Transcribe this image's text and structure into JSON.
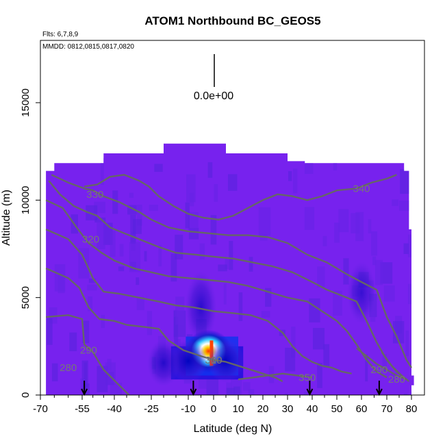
{
  "chart_data": {
    "type": "heatmap",
    "title": "ATOM1 Northbound BC_GEOS5",
    "subtitle_flights": "Flts: 6,7,8,9",
    "subtitle_dates": "MMDD: 0812,0815,0817,0820",
    "xlabel": "Latitude (deg N)",
    "ylabel": "Altitude (m)",
    "xlim": [
      -70,
      80
    ],
    "ylim": [
      0,
      18000
    ],
    "x_ticks": [
      -70,
      -55,
      -40,
      -25,
      -10,
      0,
      10,
      20,
      30,
      40,
      50,
      60,
      70,
      80
    ],
    "x_tick_labels": [
      "-70",
      "-55",
      "-40",
      "-25",
      "-10",
      "0",
      "10",
      "20",
      "30",
      "40",
      "50",
      "60",
      "70",
      "80"
    ],
    "x_minor_ticks": [
      -65,
      -60,
      -50,
      -45,
      -35,
      -30,
      -20,
      -15,
      -5,
      5,
      15,
      25,
      35,
      45,
      55,
      65,
      75
    ],
    "y_ticks": [
      0,
      5000,
      10000,
      15000
    ],
    "y_tick_labels": [
      "0",
      "5000",
      "10000",
      "15000"
    ],
    "scale_label": "0.0e+00",
    "grid": false,
    "colors": {
      "background_field": "#7722ee",
      "field_dark": "#5522dd",
      "field_blue": "#2211dd",
      "contour": "#666666",
      "hot_core": "#ff4400"
    },
    "domain_outline": [
      [
        -68,
        0
      ],
      [
        -68,
        11500
      ],
      [
        -65,
        11500
      ],
      [
        -65,
        11900
      ],
      [
        -45,
        11900
      ],
      [
        -45,
        12400
      ],
      [
        -20,
        12400
      ],
      [
        -20,
        12900
      ],
      [
        5,
        12900
      ],
      [
        5,
        12400
      ],
      [
        30,
        12400
      ],
      [
        30,
        12000
      ],
      [
        37,
        12000
      ],
      [
        37,
        11900
      ],
      [
        77,
        11900
      ],
      [
        77,
        11500
      ],
      [
        79,
        11500
      ],
      [
        79,
        8500
      ],
      [
        80,
        8500
      ],
      [
        80,
        1000
      ],
      [
        81,
        1000
      ],
      [
        81,
        500
      ],
      [
        80,
        500
      ],
      [
        80,
        0
      ]
    ],
    "hotspots": [
      {
        "lat": -2,
        "alt_min": 1500,
        "alt_max": 3000,
        "intensity": 1.0
      },
      {
        "lat": -10,
        "alt_min": 1000,
        "alt_max": 2500,
        "intensity": 0.5
      },
      {
        "lat": 5,
        "alt_min": 1000,
        "alt_max": 2500,
        "intensity": 0.45
      },
      {
        "lat": -20,
        "alt_min": 800,
        "alt_max": 2500,
        "intensity": 0.3
      },
      {
        "lat": -5,
        "alt_min": 3000,
        "alt_max": 6000,
        "intensity": 0.25
      },
      {
        "lat": 60,
        "alt_min": 4000,
        "alt_max": 6500,
        "intensity": 0.15
      }
    ],
    "contours": [
      {
        "label": "280",
        "label_at": [
          -60,
          1400
        ],
        "points": [
          [
            -68,
            4000
          ],
          [
            -60,
            4100
          ],
          [
            -55,
            3900
          ],
          [
            -54,
            2600
          ],
          [
            -50,
            2200
          ],
          [
            -45,
            1300
          ],
          [
            -38,
            500
          ],
          [
            -34,
            0
          ]
        ]
      },
      {
        "label": "290",
        "label_at": [
          -52,
          2300
        ],
        "points": [
          [
            -68,
            6500
          ],
          [
            -60,
            6000
          ],
          [
            -56,
            5500
          ],
          [
            -52,
            4500
          ],
          [
            -47,
            3900
          ],
          [
            -40,
            3800
          ],
          [
            -35,
            3600
          ],
          [
            -28,
            3500
          ],
          [
            -22,
            3400
          ],
          [
            -18,
            2800
          ],
          [
            -12,
            2300
          ],
          [
            -5,
            2000
          ],
          [
            0,
            1800
          ],
          [
            5,
            1700
          ],
          [
            10,
            1500
          ],
          [
            15,
            1300
          ],
          [
            20,
            1100
          ],
          [
            25,
            900
          ],
          [
            28,
            700
          ]
        ]
      },
      {
        "label": "300",
        "label_at": [
          0,
          1800
        ],
        "points": [
          [
            -68,
            8500
          ],
          [
            -60,
            8000
          ],
          [
            -55,
            7200
          ],
          [
            -50,
            6000
          ],
          [
            -45,
            5300
          ],
          [
            -38,
            5200
          ],
          [
            -30,
            5000
          ],
          [
            -22,
            4800
          ],
          [
            -15,
            4600
          ],
          [
            -8,
            4500
          ],
          [
            0,
            4300
          ],
          [
            8,
            4200
          ],
          [
            15,
            4100
          ],
          [
            22,
            3800
          ],
          [
            28,
            3200
          ],
          [
            32,
            2500
          ],
          [
            36,
            2000
          ],
          [
            40,
            1700
          ],
          [
            44,
            1500
          ],
          [
            48,
            1400
          ],
          [
            52,
            1200
          ],
          [
            56,
            1100
          ]
        ]
      },
      {
        "label": "310",
        "label_at": [
          0,
          1800
        ],
        "points": [
          [
            -68,
            10000
          ],
          [
            -62,
            9600
          ],
          [
            -57,
            8600
          ],
          [
            -52,
            7800
          ],
          [
            -46,
            7300
          ],
          [
            -40,
            6900
          ],
          [
            -32,
            6500
          ],
          [
            -25,
            6300
          ],
          [
            -18,
            6100
          ],
          [
            -10,
            6000
          ],
          [
            -2,
            5900
          ],
          [
            6,
            5800
          ],
          [
            14,
            5600
          ],
          [
            22,
            5300
          ],
          [
            30,
            5000
          ],
          [
            38,
            4800
          ],
          [
            44,
            4300
          ],
          [
            50,
            3800
          ],
          [
            54,
            3300
          ],
          [
            58,
            2600
          ],
          [
            62,
            1800
          ],
          [
            66,
            1200
          ],
          [
            70,
            900
          ]
        ]
      },
      {
        "label": "320",
        "label_at": [
          -51,
          8000
        ],
        "points": [
          [
            -67,
            11000
          ],
          [
            -63,
            10300
          ],
          [
            -58,
            9700
          ],
          [
            -53,
            9400
          ],
          [
            -48,
            9200
          ],
          [
            -42,
            8600
          ],
          [
            -36,
            8300
          ],
          [
            -30,
            8000
          ],
          [
            -22,
            7600
          ],
          [
            -15,
            7300
          ],
          [
            -7,
            7200
          ],
          [
            0,
            7100
          ],
          [
            8,
            7000
          ],
          [
            16,
            6800
          ],
          [
            24,
            6600
          ],
          [
            32,
            6300
          ],
          [
            40,
            5800
          ],
          [
            46,
            5400
          ],
          [
            52,
            5100
          ],
          [
            58,
            4800
          ],
          [
            62,
            3800
          ],
          [
            66,
            2700
          ],
          [
            70,
            1800
          ],
          [
            74,
            1200
          ],
          [
            77,
            900
          ]
        ]
      },
      {
        "label": "330",
        "label_at": [
          -49,
          10300
        ],
        "points": [
          [
            -66,
            11300
          ],
          [
            -60,
            10900
          ],
          [
            -54,
            10600
          ],
          [
            -50,
            10500
          ],
          [
            -45,
            10200
          ],
          [
            -38,
            9900
          ],
          [
            -30,
            9400
          ],
          [
            -25,
            9000
          ],
          [
            -18,
            8600
          ],
          [
            -10,
            8400
          ],
          [
            -2,
            8300
          ],
          [
            6,
            8200
          ],
          [
            14,
            8200
          ],
          [
            22,
            8100
          ],
          [
            30,
            7800
          ],
          [
            38,
            7200
          ],
          [
            46,
            6800
          ],
          [
            54,
            6200
          ],
          [
            60,
            5800
          ],
          [
            66,
            5400
          ],
          [
            70,
            4000
          ],
          [
            74,
            3000
          ],
          [
            78,
            1800
          ],
          [
            80,
            1400
          ]
        ]
      },
      {
        "label": "340",
        "label_at": [
          60,
          10600
        ],
        "points": [
          [
            -54,
            10700
          ],
          [
            -48,
            10800
          ],
          [
            -42,
            11200
          ],
          [
            -36,
            11300
          ],
          [
            -30,
            11000
          ],
          [
            -26,
            10700
          ],
          [
            -22,
            10200
          ],
          [
            -16,
            9700
          ],
          [
            -10,
            9300
          ],
          [
            -4,
            9100
          ],
          [
            2,
            9000
          ],
          [
            8,
            9200
          ],
          [
            14,
            9600
          ],
          [
            20,
            10000
          ],
          [
            26,
            10300
          ],
          [
            32,
            10200
          ],
          [
            38,
            10000
          ],
          [
            44,
            10200
          ],
          [
            50,
            10500
          ],
          [
            58,
            10600
          ],
          [
            64,
            10900
          ],
          [
            70,
            11100
          ],
          [
            74,
            11300
          ]
        ]
      },
      {
        "label": "350",
        "label_at": [
          38,
          900
        ],
        "points": [
          [
            10,
            800
          ],
          [
            16,
            900
          ],
          [
            22,
            1000
          ],
          [
            28,
            1100
          ],
          [
            34,
            1000
          ],
          [
            40,
            900
          ]
        ]
      },
      {
        "label": "290",
        "label_at": [
          67,
          1300
        ],
        "points": [
          [
            58,
            2400
          ],
          [
            62,
            2000
          ],
          [
            66,
            1600
          ],
          [
            70,
            1300
          ],
          [
            74,
            1000
          ],
          [
            78,
            800
          ]
        ]
      },
      {
        "label": "280",
        "label_at": [
          74,
          800
        ],
        "points": [
          [
            68,
            2200
          ],
          [
            72,
            1500
          ],
          [
            76,
            1000
          ],
          [
            79,
            700
          ]
        ]
      }
    ],
    "arrows_lat": [
      -54,
      -8,
      39,
      67
    ]
  }
}
